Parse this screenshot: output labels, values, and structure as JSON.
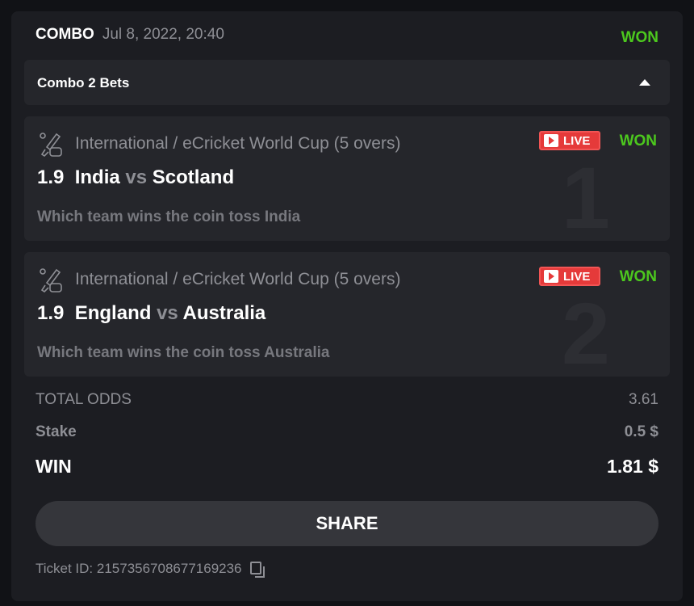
{
  "header": {
    "type": "COMBO",
    "date": "Jul 8, 2022, 20:40",
    "status": "WON"
  },
  "combo": {
    "title": "Combo 2 Bets"
  },
  "bets": [
    {
      "number": "1",
      "league": "International / eCricket World Cup (5 overs)",
      "live": "LIVE",
      "status": "WON",
      "odds": "1.9",
      "home": "India",
      "vs": "vs",
      "away": "Scotland",
      "question": "Which team wins the coin toss India"
    },
    {
      "number": "2",
      "league": "International / eCricket World Cup (5 overs)",
      "live": "LIVE",
      "status": "WON",
      "odds": "1.9",
      "home": "England",
      "vs": "vs",
      "away": "Australia",
      "question": "Which team wins the coin toss Australia"
    }
  ],
  "summary": {
    "total_odds_label": "TOTAL ODDS",
    "total_odds": "3.61",
    "stake_label": "Stake",
    "stake": "0.5 $",
    "win_label": "WIN",
    "win": "1.81 $"
  },
  "share_label": "SHARE",
  "ticket": "Ticket ID: 2157356708677169236",
  "colors": {
    "won": "#4cc81e",
    "live": "#e53a3a"
  }
}
